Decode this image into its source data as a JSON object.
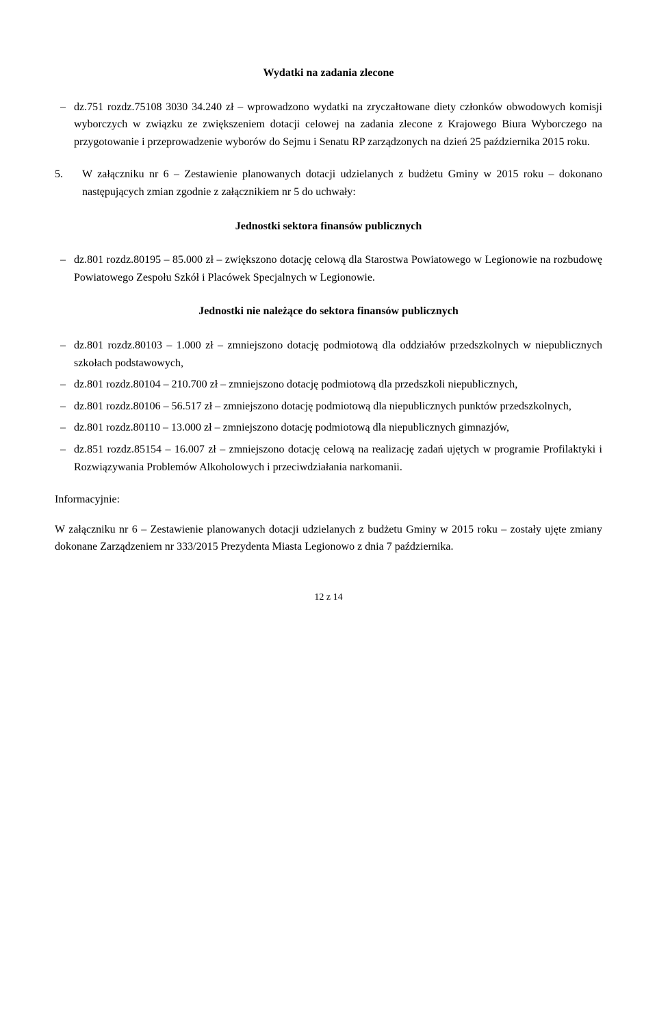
{
  "title": "Wydatki na zadania zlecone",
  "item0": "dz.751 rozdz.75108 3030 34.240 zł – wprowadzono wydatki na zryczałtowane diety członków obwodowych komisji wyborczych w związku ze zwiększeniem dotacji celowej na zadania zlecone z Krajowego Biura Wyborczego na przygotowanie i przeprowadzenie wyborów do Sejmu i Senatu RP zarządzonych na dzień 25 października 2015 roku.",
  "para5_num": "5.",
  "para5_text": "W załączniku nr 6 – Zestawienie planowanych dotacji udzielanych z budżetu Gminy w 2015 roku – dokonano następujących zmian zgodnie z załącznikiem nr 5 do uchwały:",
  "subheading1": "Jednostki sektora finansów publicznych",
  "item1": "dz.801 rozdz.80195 – 85.000 zł – zwiększono dotację celową dla Starostwa Powiatowego w Legionowie na rozbudowę Powiatowego Zespołu Szkół i Placówek Specjalnych w Legionowie.",
  "subheading2": "Jednostki nie należące do sektora finansów publicznych",
  "item2": "dz.801 rozdz.80103 – 1.000 zł – zmniejszono dotację podmiotową dla oddziałów przedszkolnych w niepublicznych szkołach podstawowych,",
  "item3": "dz.801 rozdz.80104 – 210.700 zł – zmniejszono dotację podmiotową dla przedszkoli niepublicznych,",
  "item4": "dz.801 rozdz.80106 – 56.517 zł – zmniejszono dotację podmiotową dla niepublicznych punktów przedszkolnych,",
  "item5": "dz.801 rozdz.80110 – 13.000 zł – zmniejszono dotację podmiotową dla niepublicznych gimnazjów,",
  "item6": "dz.851 rozdz.85154 – 16.007 zł – zmniejszono dotację celową na realizację zadań ujętych w programie Profilaktyki i Rozwiązywania Problemów Alkoholowych i przeciwdziałania narkomanii.",
  "info_label": "Informacyjnie:",
  "info_text": "W załączniku nr 6 – Zestawienie planowanych dotacji udzielanych z budżetu Gminy w 2015 roku – zostały ujęte zmiany dokonane Zarządzeniem nr 333/2015 Prezydenta Miasta Legionowo z dnia 7 października.",
  "footer": "12 z 14"
}
